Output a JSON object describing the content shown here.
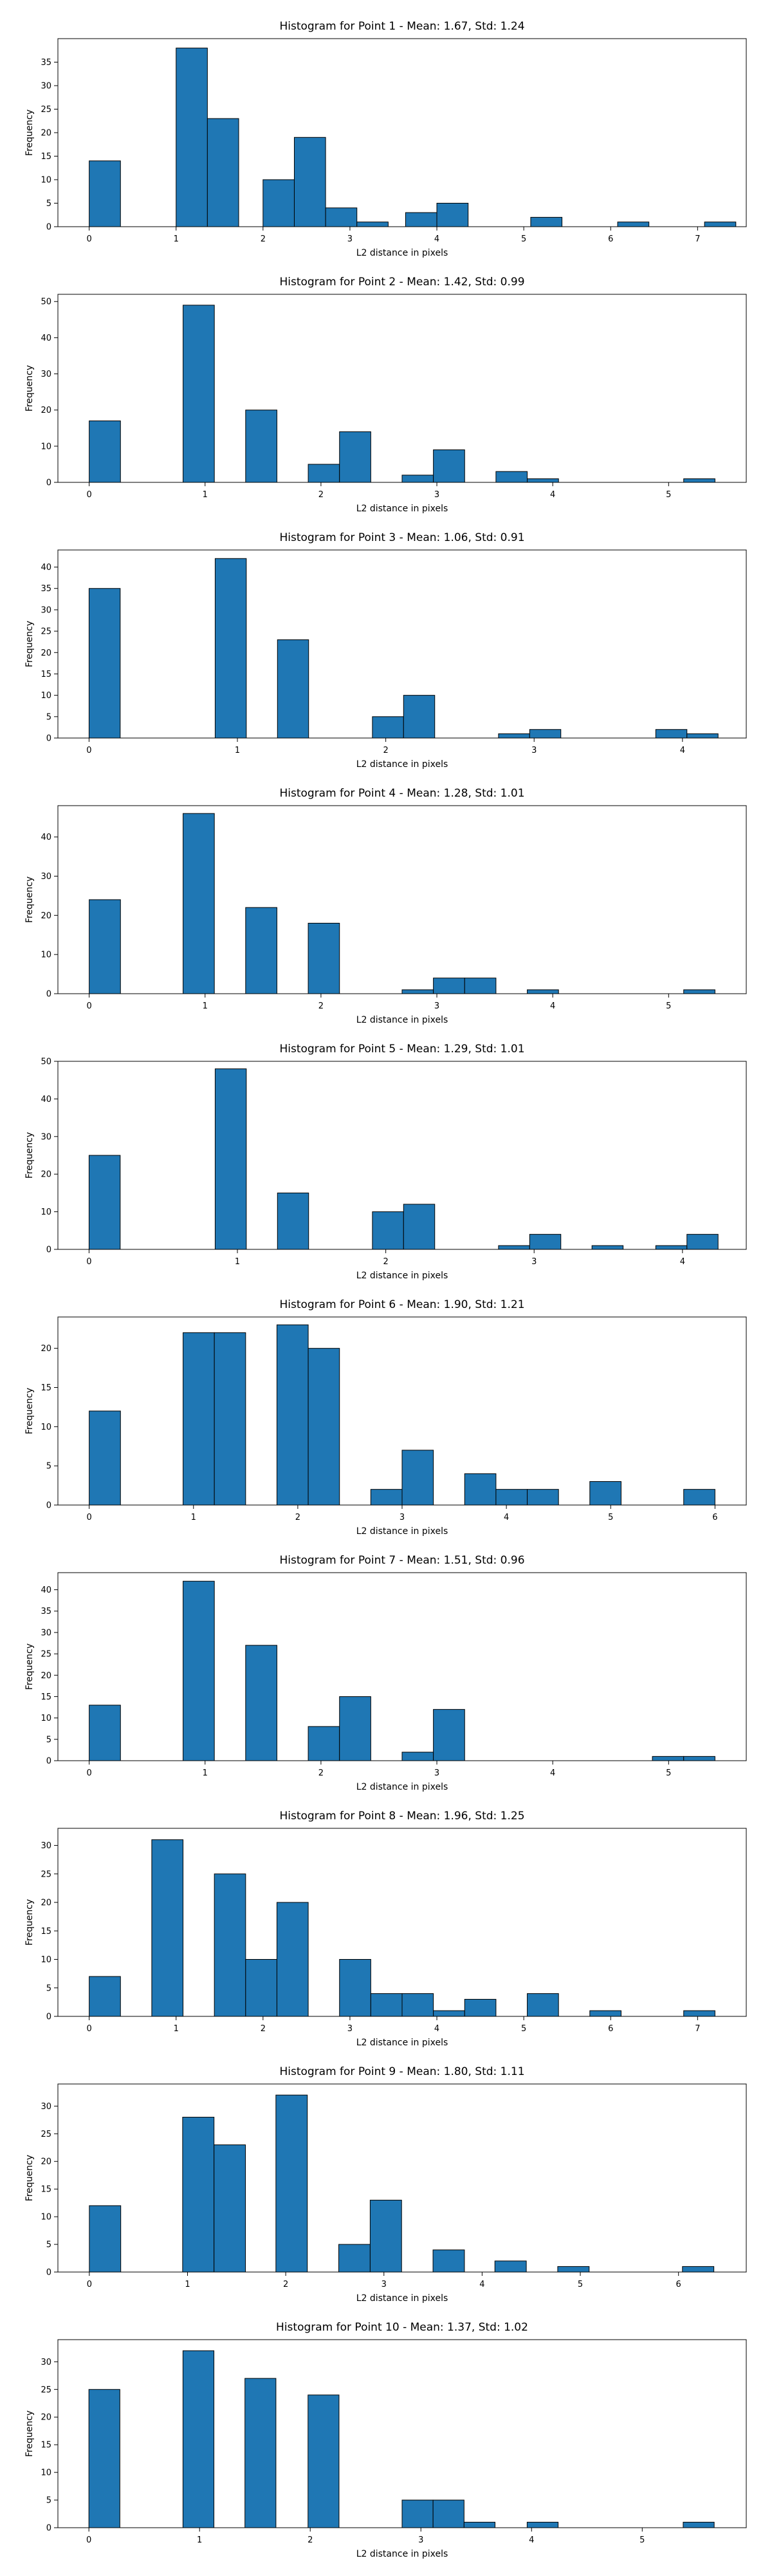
{
  "figure": {
    "background": "#ffffff",
    "bar_color": "#1f77b4",
    "edge_color": "#000000"
  },
  "chart_data": [
    {
      "type": "bar",
      "title": "Histogram for Point 1 - Mean: 1.67, Std: 1.24",
      "xlabel": "L2 distance in pixels",
      "ylabel": "Frequency",
      "xlim": [
        -0.36,
        7.56
      ],
      "ylim": [
        0,
        40
      ],
      "xticks": [
        0,
        1,
        2,
        3,
        4,
        5,
        6,
        7
      ],
      "yticks": [
        0,
        5,
        10,
        15,
        20,
        25,
        30,
        35
      ],
      "bin_width": 0.36,
      "bins": [
        [
          0,
          14
        ],
        [
          1,
          38
        ],
        [
          1.36,
          23
        ],
        [
          2,
          10
        ],
        [
          2.36,
          19
        ],
        [
          2.72,
          4
        ],
        [
          3.08,
          1
        ],
        [
          3.64,
          3
        ],
        [
          4,
          5
        ],
        [
          5.08,
          2
        ],
        [
          6.08,
          1
        ],
        [
          7.08,
          1
        ]
      ]
    },
    {
      "type": "bar",
      "title": "Histogram for Point 2 - Mean: 1.42, Std: 0.99",
      "xlabel": "L2 distance in pixels",
      "ylabel": "Frequency",
      "xlim": [
        -0.27,
        5.67
      ],
      "ylim": [
        0,
        52
      ],
      "xticks": [
        0,
        1,
        2,
        3,
        4,
        5
      ],
      "yticks": [
        0,
        10,
        20,
        30,
        40,
        50
      ],
      "bin_width": 0.27,
      "bins": [
        [
          0,
          17
        ],
        [
          0.81,
          49
        ],
        [
          1.35,
          20
        ],
        [
          1.89,
          5
        ],
        [
          2.16,
          14
        ],
        [
          2.7,
          2
        ],
        [
          2.97,
          9
        ],
        [
          3.51,
          3
        ],
        [
          3.78,
          1
        ],
        [
          5.13,
          1
        ]
      ]
    },
    {
      "type": "bar",
      "title": "Histogram for Point 3 - Mean: 1.06, Std: 0.91",
      "xlabel": "L2 distance in pixels",
      "ylabel": "Frequency",
      "xlim": [
        -0.21,
        4.43
      ],
      "ylim": [
        0,
        44
      ],
      "xticks": [
        0,
        1,
        2,
        3,
        4
      ],
      "yticks": [
        0,
        5,
        10,
        15,
        20,
        25,
        30,
        35,
        40
      ],
      "bin_width": 0.21,
      "bins": [
        [
          0,
          35
        ],
        [
          0.85,
          42
        ],
        [
          1.27,
          23
        ],
        [
          1.91,
          5
        ],
        [
          2.12,
          10
        ],
        [
          2.76,
          1
        ],
        [
          2.97,
          2
        ],
        [
          3.82,
          2
        ],
        [
          4.03,
          1
        ]
      ]
    },
    {
      "type": "bar",
      "title": "Histogram for Point 4 - Mean: 1.28, Std: 1.01",
      "xlabel": "L2 distance in pixels",
      "ylabel": "Frequency",
      "xlim": [
        -0.27,
        5.67
      ],
      "ylim": [
        0,
        48
      ],
      "xticks": [
        0,
        1,
        2,
        3,
        4,
        5
      ],
      "yticks": [
        0,
        10,
        20,
        30,
        40
      ],
      "bin_width": 0.27,
      "bins": [
        [
          0,
          24
        ],
        [
          0.81,
          46
        ],
        [
          1.35,
          22
        ],
        [
          1.89,
          18
        ],
        [
          2.7,
          1
        ],
        [
          2.97,
          4
        ],
        [
          3.24,
          4
        ],
        [
          3.78,
          1
        ],
        [
          5.13,
          1
        ]
      ]
    },
    {
      "type": "bar",
      "title": "Histogram for Point 5 - Mean: 1.29, Std: 1.01",
      "xlabel": "L2 distance in pixels",
      "ylabel": "Frequency",
      "xlim": [
        -0.21,
        4.43
      ],
      "ylim": [
        0,
        50
      ],
      "xticks": [
        0,
        1,
        2,
        3,
        4
      ],
      "yticks": [
        0,
        10,
        20,
        30,
        40,
        50
      ],
      "bin_width": 0.21,
      "bins": [
        [
          0,
          25
        ],
        [
          0.85,
          48
        ],
        [
          1.27,
          15
        ],
        [
          1.91,
          10
        ],
        [
          2.12,
          12
        ],
        [
          2.76,
          1
        ],
        [
          2.97,
          4
        ],
        [
          3.39,
          1
        ],
        [
          3.82,
          1
        ],
        [
          4.03,
          4
        ]
      ]
    },
    {
      "type": "bar",
      "title": "Histogram for Point 6 - Mean: 1.90, Std: 1.21",
      "xlabel": "L2 distance in pixels",
      "ylabel": "Frequency",
      "xlim": [
        -0.3,
        6.3
      ],
      "ylim": [
        0,
        24
      ],
      "xticks": [
        0,
        1,
        2,
        3,
        4,
        5,
        6
      ],
      "yticks": [
        0,
        5,
        10,
        15,
        20
      ],
      "bin_width": 0.3,
      "bins": [
        [
          0,
          12
        ],
        [
          0.9,
          22
        ],
        [
          1.2,
          22
        ],
        [
          1.8,
          23
        ],
        [
          2.1,
          20
        ],
        [
          2.7,
          2
        ],
        [
          3,
          7
        ],
        [
          3.6,
          4
        ],
        [
          3.9,
          2
        ],
        [
          4.2,
          2
        ],
        [
          4.8,
          3
        ],
        [
          5.7,
          2
        ]
      ]
    },
    {
      "type": "bar",
      "title": "Histogram for Point 7 - Mean: 1.51, Std: 0.96",
      "xlabel": "L2 distance in pixels",
      "ylabel": "Frequency",
      "xlim": [
        -0.27,
        5.67
      ],
      "ylim": [
        0,
        44
      ],
      "xticks": [
        0,
        1,
        2,
        3,
        4,
        5
      ],
      "yticks": [
        0,
        5,
        10,
        15,
        20,
        25,
        30,
        35,
        40
      ],
      "bin_width": 0.27,
      "bins": [
        [
          0,
          13
        ],
        [
          0.81,
          42
        ],
        [
          1.35,
          27
        ],
        [
          1.89,
          8
        ],
        [
          2.16,
          15
        ],
        [
          2.7,
          2
        ],
        [
          2.97,
          12
        ],
        [
          4.86,
          1
        ],
        [
          5.13,
          1
        ]
      ]
    },
    {
      "type": "bar",
      "title": "Histogram for Point 8 - Mean: 1.96, Std: 1.25",
      "xlabel": "L2 distance in pixels",
      "ylabel": "Frequency",
      "xlim": [
        -0.36,
        7.56
      ],
      "ylim": [
        0,
        33
      ],
      "xticks": [
        0,
        1,
        2,
        3,
        4,
        5,
        6,
        7
      ],
      "yticks": [
        0,
        5,
        10,
        15,
        20,
        25,
        30
      ],
      "bin_width": 0.36,
      "bins": [
        [
          0,
          7
        ],
        [
          0.72,
          31
        ],
        [
          1.44,
          25
        ],
        [
          1.8,
          10
        ],
        [
          2.16,
          20
        ],
        [
          2.88,
          10
        ],
        [
          3.24,
          4
        ],
        [
          3.6,
          4
        ],
        [
          3.96,
          1
        ],
        [
          4.32,
          3
        ],
        [
          5.04,
          4
        ],
        [
          5.76,
          1
        ],
        [
          6.84,
          1
        ]
      ]
    },
    {
      "type": "bar",
      "title": "Histogram for Point 9 - Mean: 1.80, Std: 1.11",
      "xlabel": "L2 distance in pixels",
      "ylabel": "Frequency",
      "xlim": [
        -0.32,
        6.69
      ],
      "ylim": [
        0,
        34
      ],
      "xticks": [
        0,
        1,
        2,
        3,
        4,
        5,
        6
      ],
      "yticks": [
        0,
        5,
        10,
        15,
        20,
        25,
        30
      ],
      "bin_width": 0.32,
      "bins": [
        [
          0,
          12
        ],
        [
          0.95,
          28
        ],
        [
          1.27,
          23
        ],
        [
          1.9,
          32
        ],
        [
          2.54,
          5
        ],
        [
          2.86,
          13
        ],
        [
          3.5,
          4
        ],
        [
          4.13,
          2
        ],
        [
          4.77,
          1
        ],
        [
          6.04,
          1
        ]
      ]
    },
    {
      "type": "bar",
      "title": "Histogram for Point 10 - Mean: 1.37, Std: 1.02",
      "xlabel": "L2 distance in pixels",
      "ylabel": "Frequency",
      "xlim": [
        -0.28,
        5.94
      ],
      "ylim": [
        0,
        34
      ],
      "xticks": [
        0,
        1,
        2,
        3,
        4,
        5
      ],
      "yticks": [
        0,
        5,
        10,
        15,
        20,
        25,
        30
      ],
      "bin_width": 0.28,
      "bins": [
        [
          0,
          25
        ],
        [
          0.85,
          32
        ],
        [
          1.41,
          27
        ],
        [
          1.98,
          24
        ],
        [
          2.83,
          5
        ],
        [
          3.11,
          5
        ],
        [
          3.39,
          1
        ],
        [
          3.96,
          1
        ],
        [
          5.37,
          1
        ]
      ]
    }
  ]
}
